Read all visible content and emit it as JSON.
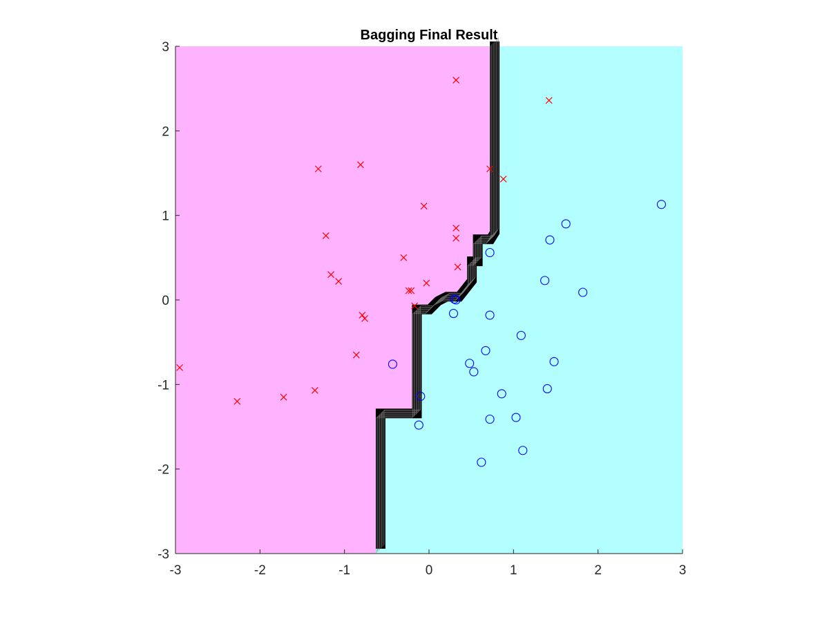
{
  "chart_data": {
    "type": "scatter",
    "title": "Bagging Final Result",
    "xlabel": "",
    "ylabel": "",
    "xlim": [
      -3,
      3
    ],
    "ylim": [
      -3,
      3
    ],
    "x_ticks": [
      -3,
      -2,
      -1,
      0,
      1,
      2,
      3
    ],
    "y_ticks": [
      -3,
      -2,
      -1,
      0,
      1,
      2,
      3
    ],
    "x_tick_labels": [
      "-3",
      "-2",
      "-1",
      "0",
      "1",
      "2",
      "3"
    ],
    "y_tick_labels": [
      "-3",
      "-2",
      "-1",
      "0",
      "1",
      "2",
      "3"
    ],
    "grid": false,
    "legend": false,
    "regions": [
      {
        "name": "class x region",
        "color": "#ffb3ff"
      },
      {
        "name": "class o region",
        "color": "#b3ffff"
      }
    ],
    "decision_boundary": {
      "color": "#000000",
      "polyline": [
        [
          -0.63,
          -3.0
        ],
        [
          -0.63,
          -1.4
        ],
        [
          -0.2,
          -1.4
        ],
        [
          -0.2,
          -0.17
        ],
        [
          -0.05,
          -0.17
        ],
        [
          0.05,
          -0.07
        ],
        [
          0.15,
          -0.02
        ],
        [
          0.3,
          -0.02
        ],
        [
          0.45,
          0.17
        ],
        [
          0.45,
          0.4
        ],
        [
          0.52,
          0.4
        ],
        [
          0.52,
          0.66
        ],
        [
          0.67,
          0.66
        ],
        [
          0.72,
          0.74
        ],
        [
          0.72,
          3.0
        ]
      ]
    },
    "series": [
      {
        "marker": "x",
        "color": "#ff0000",
        "points": [
          [
            0.32,
            2.6
          ],
          [
            1.42,
            2.36
          ],
          [
            -1.31,
            1.55
          ],
          [
            -0.81,
            1.6
          ],
          [
            0.72,
            1.55
          ],
          [
            0.88,
            1.43
          ],
          [
            -0.06,
            1.11
          ],
          [
            0.32,
            0.85
          ],
          [
            0.32,
            0.73
          ],
          [
            -1.22,
            0.76
          ],
          [
            -0.3,
            0.5
          ],
          [
            0.34,
            0.39
          ],
          [
            -1.16,
            0.3
          ],
          [
            -1.07,
            0.22
          ],
          [
            -0.24,
            0.11
          ],
          [
            -0.21,
            0.11
          ],
          [
            -0.03,
            0.2
          ],
          [
            -0.17,
            -0.07
          ],
          [
            -0.79,
            -0.18
          ],
          [
            -0.76,
            -0.22
          ],
          [
            -0.86,
            -0.65
          ],
          [
            -2.95,
            -0.8
          ],
          [
            -2.27,
            -1.2
          ],
          [
            -1.72,
            -1.15
          ],
          [
            -1.35,
            -1.07
          ]
        ]
      },
      {
        "marker": "o",
        "color": "#0000ff",
        "points": [
          [
            2.75,
            1.13
          ],
          [
            1.62,
            0.9
          ],
          [
            1.43,
            0.71
          ],
          [
            0.72,
            0.56
          ],
          [
            1.37,
            0.23
          ],
          [
            1.82,
            0.09
          ],
          [
            0.3,
            0.01
          ],
          [
            0.32,
            0.0
          ],
          [
            0.29,
            -0.16
          ],
          [
            0.72,
            -0.18
          ],
          [
            1.09,
            -0.42
          ],
          [
            -0.43,
            -0.76
          ],
          [
            0.67,
            -0.6
          ],
          [
            0.48,
            -0.75
          ],
          [
            0.53,
            -0.85
          ],
          [
            1.48,
            -0.73
          ],
          [
            -0.1,
            -1.14
          ],
          [
            0.86,
            -1.11
          ],
          [
            1.4,
            -1.05
          ],
          [
            -0.12,
            -1.48
          ],
          [
            0.72,
            -1.41
          ],
          [
            1.03,
            -1.39
          ],
          [
            1.11,
            -1.78
          ],
          [
            0.62,
            -1.92
          ]
        ]
      }
    ]
  }
}
